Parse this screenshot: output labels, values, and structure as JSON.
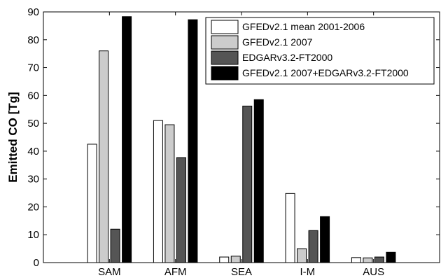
{
  "chart_data": {
    "type": "bar",
    "title": "",
    "xlabel": "",
    "ylabel": "Emitted CO [Tg]",
    "ylim": [
      0,
      90
    ],
    "yticks": [
      0,
      10,
      20,
      30,
      40,
      50,
      60,
      70,
      80,
      90
    ],
    "grid": false,
    "legend_position": "top-right",
    "categories": [
      "SAM",
      "AFM",
      "SEA",
      "I-M",
      "AUS"
    ],
    "series": [
      {
        "name": "GFEDv2.1 mean 2001-2006",
        "color": "#ffffff",
        "values": [
          42.5,
          51,
          2,
          24.8,
          1.8
        ]
      },
      {
        "name": "GFEDv2.1 2007",
        "color": "#cccccc",
        "values": [
          76,
          49.5,
          2.3,
          5,
          1.7
        ]
      },
      {
        "name": "EDGARv3.2-FT2000",
        "color": "#555555",
        "values": [
          12,
          37.7,
          56.2,
          11.5,
          2
        ]
      },
      {
        "name": "GFEDv2.1 2007+EDGARv3.2-FT2000",
        "color": "#000000",
        "values": [
          88.3,
          87.2,
          58.5,
          16.5,
          3.7
        ]
      }
    ]
  }
}
